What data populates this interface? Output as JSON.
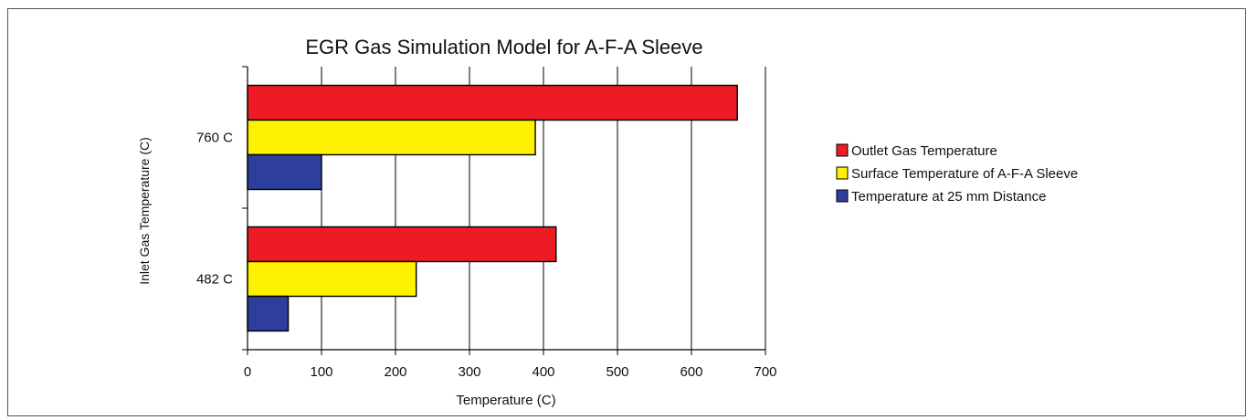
{
  "chart_data": {
    "type": "bar",
    "orientation": "horizontal",
    "title": "EGR Gas Simulation Model for A-F-A Sleeve",
    "xlabel": "Temperature (C)",
    "ylabel": "Inlet Gas Temperature (C)",
    "categories": [
      "760 C",
      "482 C"
    ],
    "xlim": [
      0,
      700
    ],
    "xticks": [
      0,
      100,
      200,
      300,
      400,
      500,
      600,
      700
    ],
    "grid": true,
    "legend_position": "right",
    "series": [
      {
        "name": "Outlet Gas Temperature",
        "color": "#ed1c24",
        "values": [
          662,
          417
        ]
      },
      {
        "name": "Surface Temperature of A-F-A Sleeve",
        "color": "#fff200",
        "values": [
          389,
          228
        ]
      },
      {
        "name": "Temperature at 25 mm Distance",
        "color": "#2e3e9c",
        "values": [
          100,
          55
        ]
      }
    ]
  }
}
